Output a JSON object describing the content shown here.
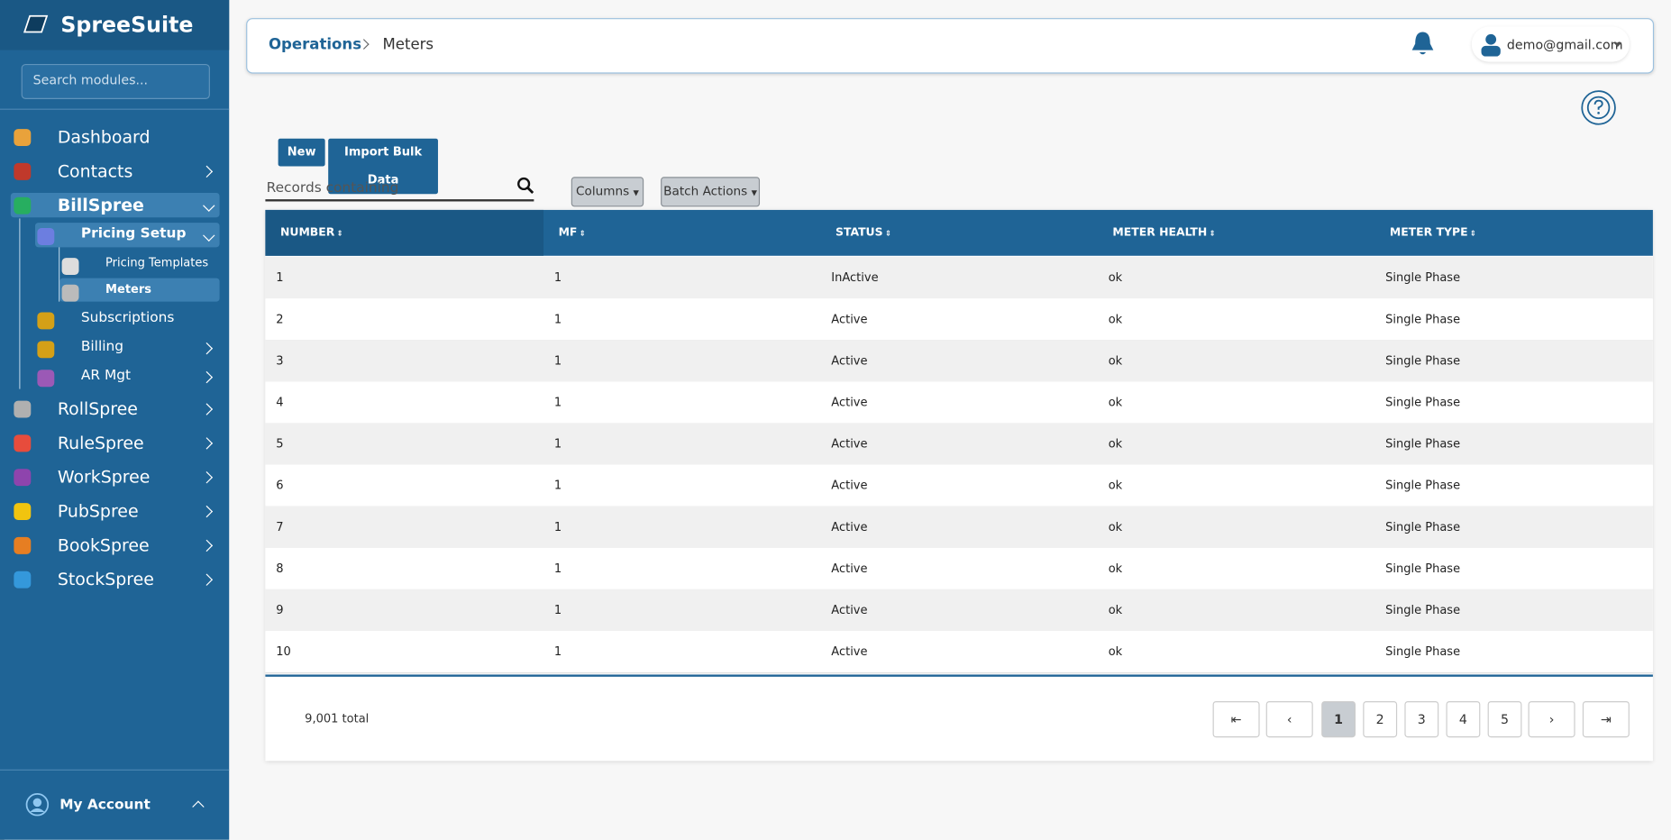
{
  "sidebar": {
    "brand": "SpreeSuite",
    "search_placeholder": "Search modules...",
    "nav": [
      "Dashboard",
      "Contacts",
      "BillSpree",
      "Pricing Setup",
      "Pricing Templates",
      "Meters",
      "Subscriptions",
      "Billing",
      "AR Mgt",
      "RollSpree",
      "RuleSpree",
      "WorkSpree",
      "PubSpree",
      "BookSpree",
      "StockSpree"
    ],
    "account": "My Account"
  },
  "header": {
    "breadcrumb": [
      "Operations",
      "Meters"
    ],
    "user": "demo@gmail.com"
  },
  "toolbar": {
    "buttons": [
      "New",
      "Import Bulk Data"
    ],
    "search_placeholder": "Records containing",
    "dropdowns": [
      "Columns",
      "Batch Actions"
    ]
  },
  "table": {
    "columns": [
      "NUMBER",
      "MF",
      "STATUS",
      "METER HEALTH",
      "METER TYPE"
    ],
    "rows": [
      [
        "1",
        "1",
        "InActive",
        "ok",
        "Single Phase"
      ],
      [
        "2",
        "1",
        "Active",
        "ok",
        "Single Phase"
      ],
      [
        "3",
        "1",
        "Active",
        "ok",
        "Single Phase"
      ],
      [
        "4",
        "1",
        "Active",
        "ok",
        "Single Phase"
      ],
      [
        "5",
        "1",
        "Active",
        "ok",
        "Single Phase"
      ],
      [
        "6",
        "1",
        "Active",
        "ok",
        "Single Phase"
      ],
      [
        "7",
        "1",
        "Active",
        "ok",
        "Single Phase"
      ],
      [
        "8",
        "1",
        "Active",
        "ok",
        "Single Phase"
      ],
      [
        "9",
        "1",
        "Active",
        "ok",
        "Single Phase"
      ],
      [
        "10",
        "1",
        "Active",
        "ok",
        "Single Phase"
      ]
    ]
  },
  "footer": {
    "total": "9,001 total",
    "pages": [
      "1",
      "2",
      "3",
      "4",
      "5"
    ]
  }
}
